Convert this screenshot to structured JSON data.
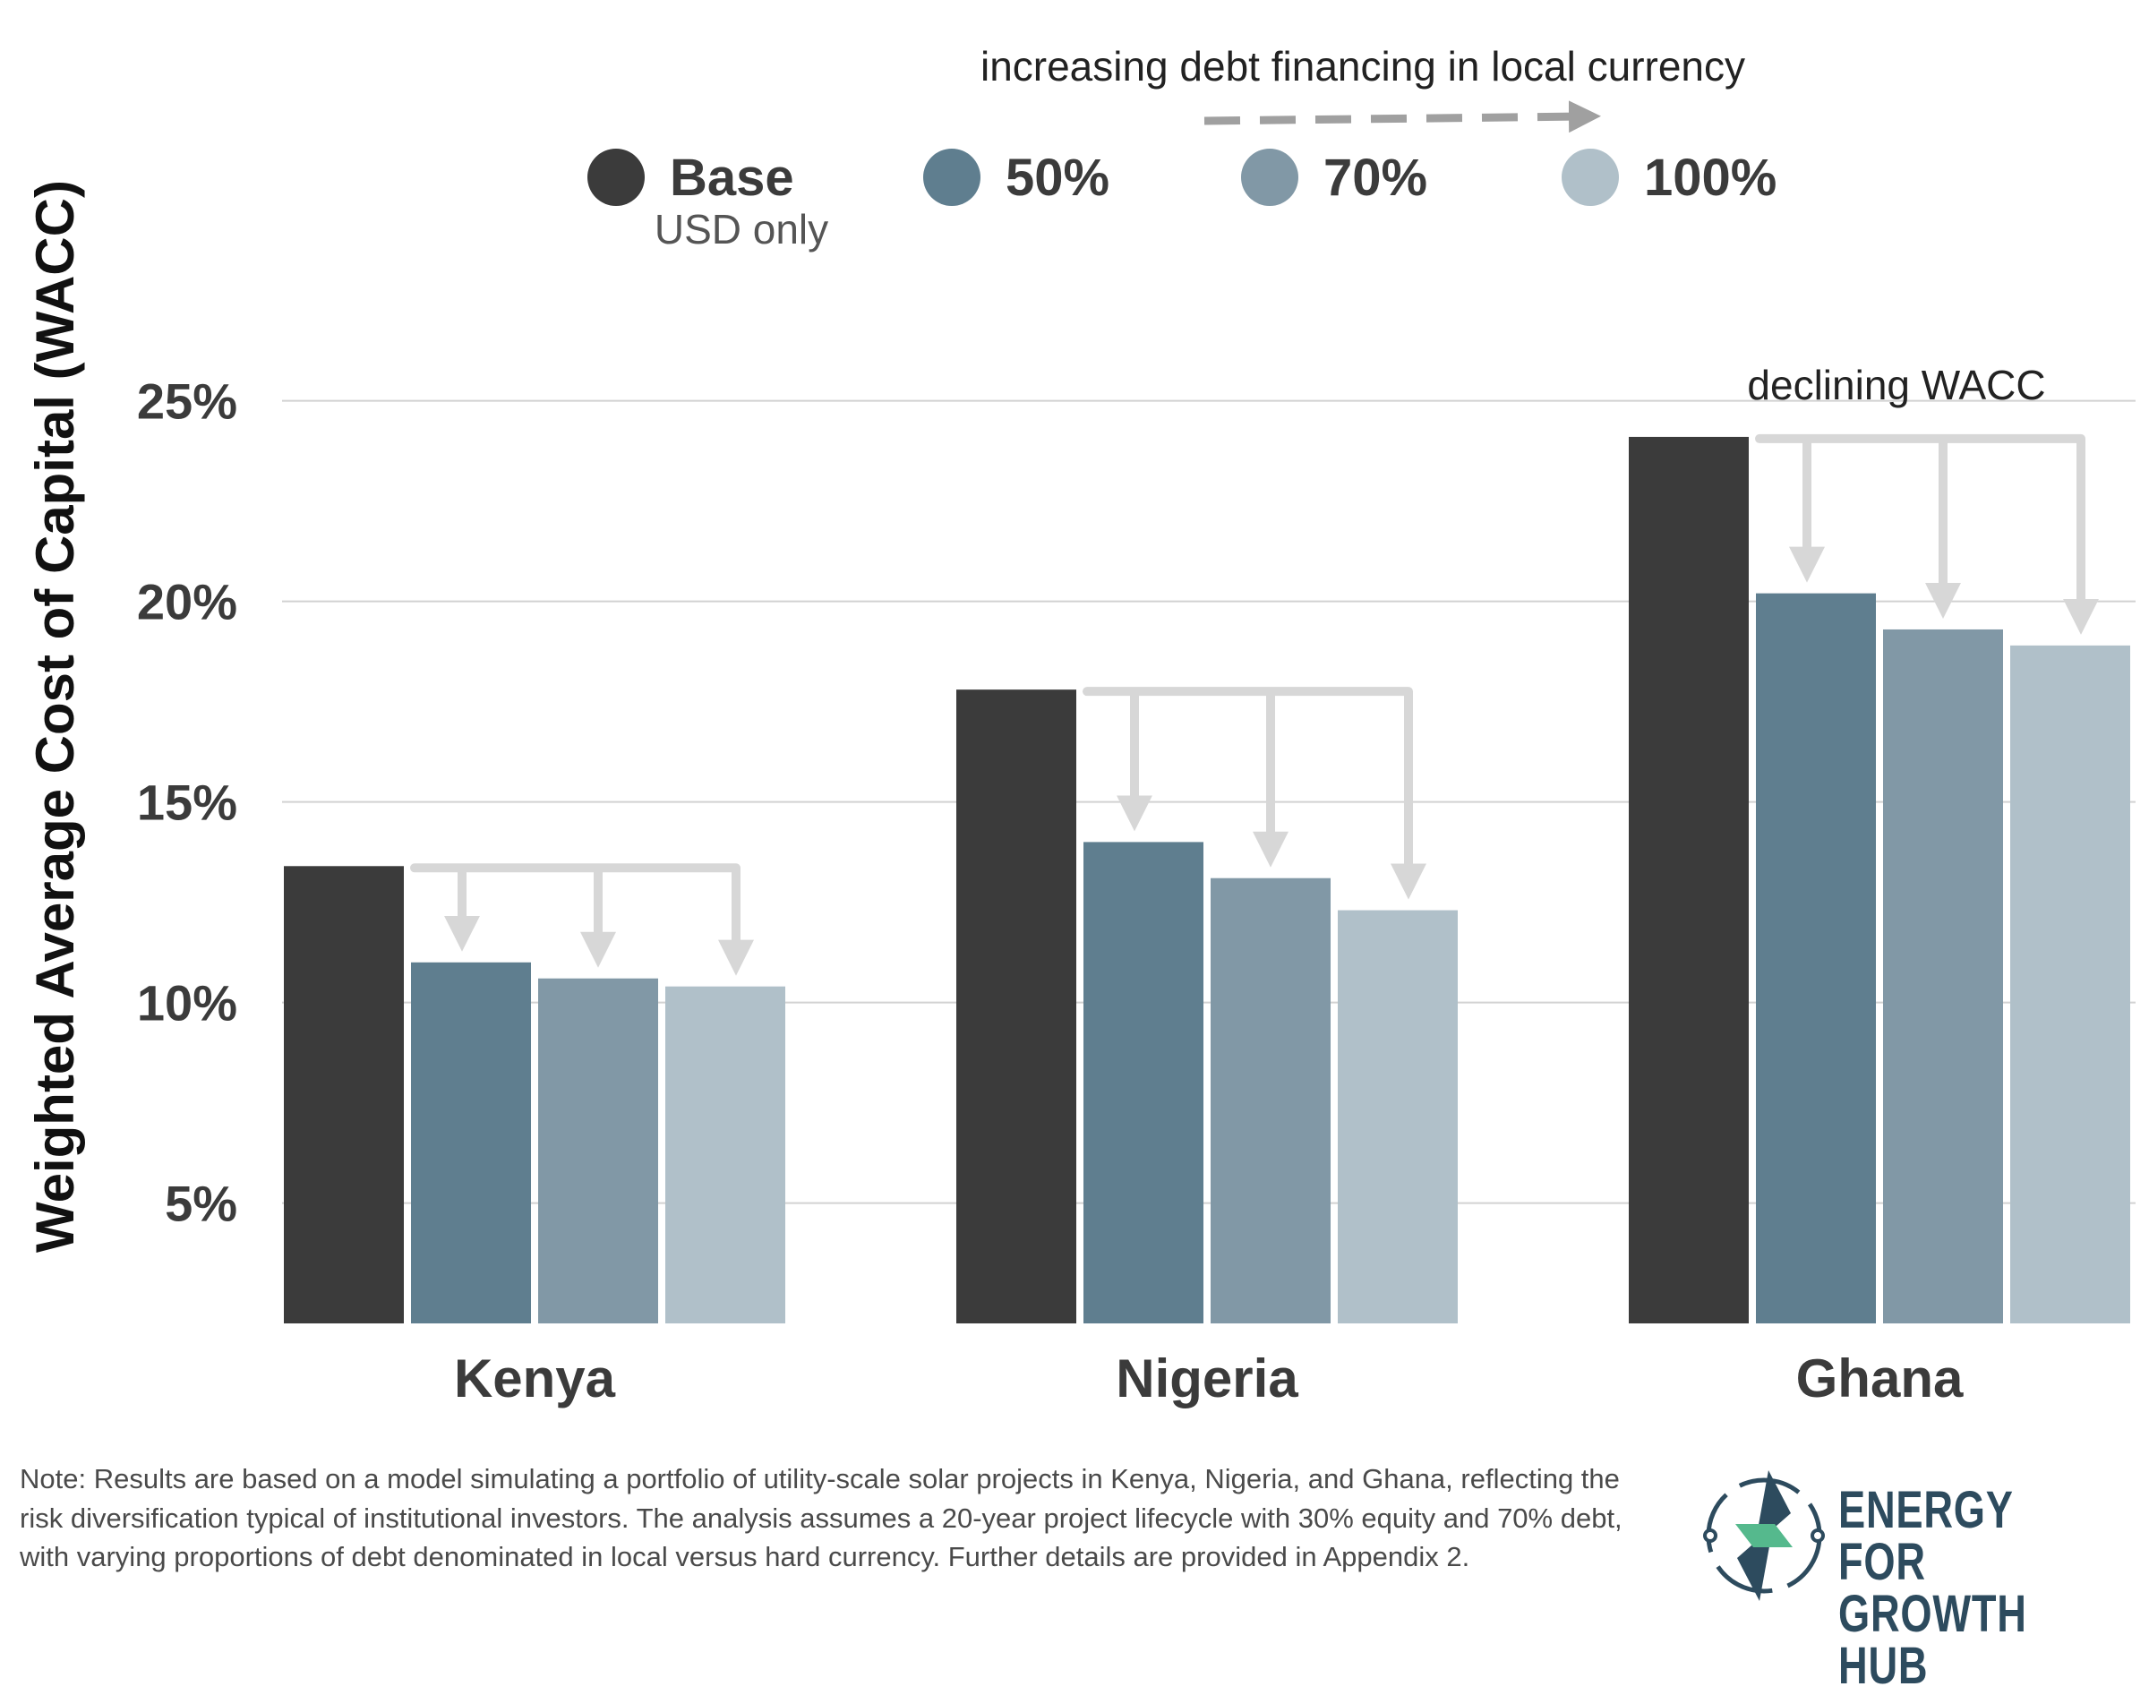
{
  "chart_data": {
    "type": "bar",
    "ylabel": "Weighted Average Cost of Capital (WACC)",
    "yticks": [
      "5%",
      "10%",
      "15%",
      "20%",
      "25%"
    ],
    "ylim": [
      2,
      27
    ],
    "grid": true,
    "legend_position": "top-center",
    "categories": [
      "Kenya",
      "Nigeria",
      "Ghana"
    ],
    "series": [
      {
        "name": "Base",
        "color": "#3b3b3b",
        "values": [
          13.4,
          17.8,
          24.1
        ]
      },
      {
        "name": "50%",
        "color": "#5f7e8f",
        "values": [
          11.0,
          14.0,
          20.2
        ]
      },
      {
        "name": "70%",
        "color": "#8198a6",
        "values": [
          10.6,
          13.1,
          19.3
        ]
      },
      {
        "name": "100%",
        "color": "#b0c0c9",
        "values": [
          10.4,
          12.3,
          18.9
        ]
      }
    ],
    "legend_sublabel": "USD only",
    "annotations": {
      "top": "increasing debt financing in local currency",
      "right": "declining WACC"
    }
  },
  "note": "Note: Results are based on a model simulating a portfolio of utility-scale solar projects in Kenya, Nigeria, and Ghana, reflecting the risk diversification typical of institutional investors. The analysis assumes a 20-year project lifecycle with 30% equity and 70% debt, with varying proportions of debt denominated in local versus hard currency. Further details are provided in Appendix 2.",
  "logo": {
    "line1": "ENERGY FOR",
    "line2": "GROWTH HUB"
  }
}
